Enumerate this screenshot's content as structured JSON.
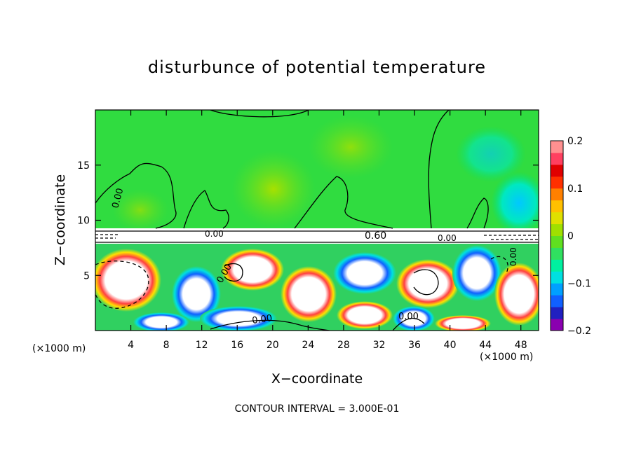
{
  "title": "disturbunce of potential temperature",
  "footer": "CONTOUR INTERVAL = 3.000E-01",
  "chart_data": {
    "type": "heatmap",
    "title": "disturbunce of potential temperature",
    "xlabel": "X−coordinate",
    "ylabel": "Z−coordinate",
    "x_units": "(×1000 m)",
    "z_units": "(×1000 m)",
    "xlim": [
      0,
      50
    ],
    "ylim": [
      0,
      20
    ],
    "x_ticks": [
      4,
      8,
      12,
      16,
      20,
      24,
      28,
      32,
      36,
      40,
      44,
      48
    ],
    "y_ticks": [
      5,
      10,
      15
    ],
    "colorbar": {
      "range": [
        -0.2,
        0.2
      ],
      "ticks": [
        0.2,
        0.1,
        0,
        -0.1,
        -0.2
      ],
      "tick_labels": [
        "0.2",
        "0.1",
        "0",
        "−0.1",
        "−0.2"
      ],
      "colors": [
        "#8a00b0",
        "#2020c0",
        "#1060ff",
        "#00a0ff",
        "#00e0e0",
        "#00f0a0",
        "#30e060",
        "#60e020",
        "#a0e000",
        "#e0e000",
        "#ffc000",
        "#ff8000",
        "#ff3000",
        "#e00000",
        "#ff4060",
        "#ff9090"
      ]
    },
    "contour_labels": [
      "0.00",
      "0.60",
      "0.00",
      "0.00",
      "0.00",
      "0.00",
      "0.00",
      "0.00"
    ],
    "contour_interval": "3.000E-01"
  }
}
